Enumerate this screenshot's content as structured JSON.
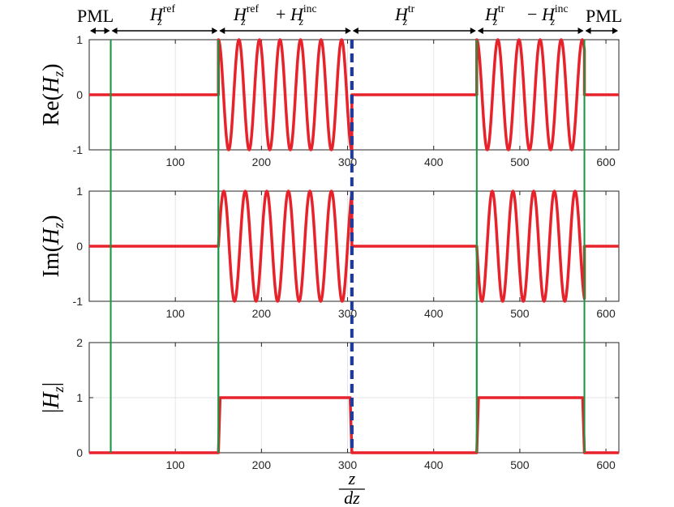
{
  "top_labels": [
    {
      "id": "pml-left",
      "text": "PML",
      "sup": ""
    },
    {
      "id": "ref",
      "text": "H",
      "sub": "z",
      "sup": "ref"
    },
    {
      "id": "ref-inc",
      "text": "H",
      "sub": "z",
      "sup": "ref",
      "op": "+",
      "text2": "H",
      "sub2": "z",
      "sup2": "inc"
    },
    {
      "id": "tr",
      "text": "H",
      "sub": "z",
      "sup": "tr"
    },
    {
      "id": "tr-inc",
      "text": "H",
      "sub": "z",
      "sup": "tr",
      "op": "−",
      "text2": "H",
      "sub2": "z",
      "sup2": "inc"
    },
    {
      "id": "pml-right",
      "text": "PML",
      "sup": ""
    }
  ],
  "region_boundaries": [
    0,
    25,
    150,
    305,
    450,
    575,
    615
  ],
  "colors": {
    "signal": "#e8222a",
    "interface": "#1a9641",
    "mid_line": "#1f3b9a",
    "grid": "#e6e6e6",
    "axis": "#262626"
  },
  "xlabel": {
    "num": "z",
    "den": "dz"
  },
  "chart_data": [
    {
      "type": "line",
      "ylabel": "Re(Hz)",
      "ylabel_parts": {
        "fn": "Re(",
        "var": "H",
        "sub": "z",
        "close": ")"
      },
      "xlim": [
        0,
        615
      ],
      "ylim": [
        -1,
        1
      ],
      "xticks": [
        100,
        200,
        300,
        400,
        500,
        600
      ],
      "yticks": [
        -1,
        0,
        1
      ],
      "grid": true,
      "vlines_green": [
        25,
        150,
        450,
        575
      ],
      "vline_dashed": 305,
      "series": [
        {
          "segments": [
            {
              "x": [
                0,
                150
              ],
              "kind": "const",
              "value": 0
            },
            {
              "x": [
                150,
                305
              ],
              "kind": "cos",
              "amplitude": 1,
              "cycles": 6.5,
              "phase": 0
            },
            {
              "x": [
                305,
                450
              ],
              "kind": "const",
              "value": 0
            },
            {
              "x": [
                450,
                575
              ],
              "kind": "cos",
              "amplitude": 1,
              "cycles": 5.1,
              "phase": 0
            },
            {
              "x": [
                575,
                615
              ],
              "kind": "const",
              "value": 0
            }
          ]
        }
      ]
    },
    {
      "type": "line",
      "ylabel": "Im(Hz)",
      "ylabel_parts": {
        "fn": "Im(",
        "var": "H",
        "sub": "z",
        "close": ")"
      },
      "xlim": [
        0,
        615
      ],
      "ylim": [
        -1,
        1
      ],
      "xticks": [
        100,
        200,
        300,
        400,
        500,
        600
      ],
      "yticks": [
        -1,
        0,
        1
      ],
      "grid": true,
      "vlines_green": [
        25,
        150,
        450,
        575
      ],
      "vline_dashed": 305,
      "series": [
        {
          "segments": [
            {
              "x": [
                0,
                150
              ],
              "kind": "const",
              "value": 0
            },
            {
              "x": [
                150,
                305
              ],
              "kind": "sin",
              "amplitude": 1,
              "cycles": 6.2,
              "phase": 0
            },
            {
              "x": [
                305,
                450
              ],
              "kind": "const",
              "value": 0
            },
            {
              "x": [
                450,
                575
              ],
              "kind": "sin",
              "amplitude": -1,
              "cycles": 5.2,
              "phase": 0
            },
            {
              "x": [
                575,
                615
              ],
              "kind": "const",
              "value": 0
            }
          ]
        }
      ]
    },
    {
      "type": "line",
      "ylabel": "|Hz|",
      "ylabel_parts": {
        "fn": "|",
        "var": "H",
        "sub": "z",
        "close": "|"
      },
      "xlim": [
        0,
        615
      ],
      "ylim": [
        0,
        2
      ],
      "xticks": [
        100,
        200,
        300,
        400,
        500,
        600
      ],
      "yticks": [
        0,
        1,
        2
      ],
      "grid": true,
      "vlines_green": [
        25,
        150,
        450,
        575
      ],
      "vline_dashed": 305,
      "series": [
        {
          "x": [
            0,
            150,
            152,
            303,
            305,
            450,
            452,
            573,
            575,
            615
          ],
          "y": [
            0,
            0,
            1,
            1,
            0,
            0,
            1,
            1,
            0,
            0
          ]
        }
      ]
    }
  ]
}
